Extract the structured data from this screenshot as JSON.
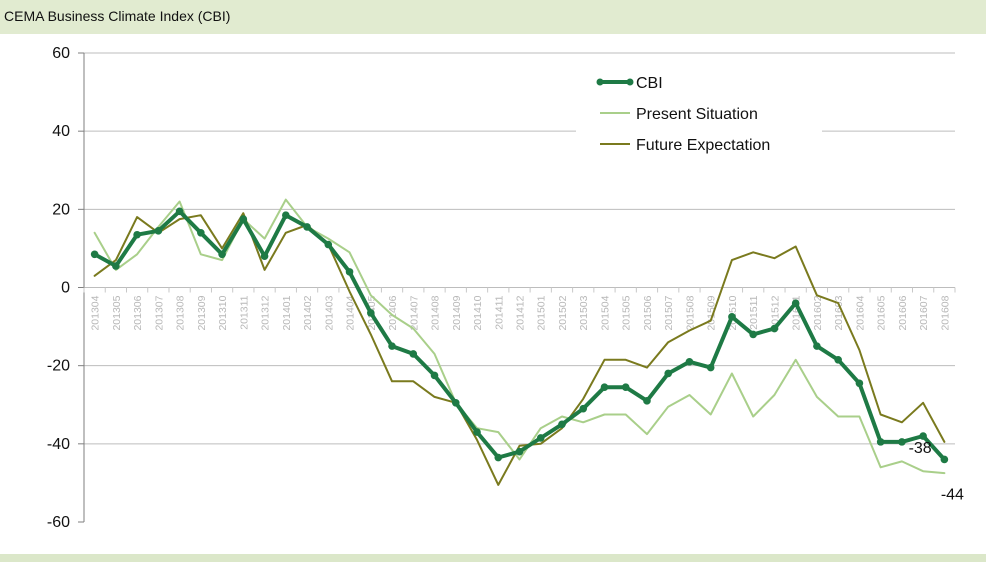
{
  "chart_data": {
    "type": "line",
    "title": "CEMA Business Climate Index (CBI)",
    "xlabel": "",
    "ylabel": "",
    "ylim": [
      -60,
      60
    ],
    "yticks": [
      -60,
      -40,
      -20,
      0,
      20,
      40,
      60
    ],
    "grid": true,
    "legend_position": "top-right",
    "categories": [
      "201304",
      "201305",
      "201306",
      "201307",
      "201308",
      "201309",
      "201310",
      "201311",
      "201312",
      "201401",
      "201402",
      "201403",
      "201404",
      "201405",
      "201406",
      "201407",
      "201408",
      "201409",
      "201410",
      "201411",
      "201412",
      "201501",
      "201502",
      "201503",
      "201504",
      "201505",
      "201506",
      "201507",
      "201508",
      "201509",
      "201510",
      "201511",
      "201512",
      "201601",
      "201602",
      "201603",
      "201604",
      "201605",
      "201606",
      "201607",
      "201608"
    ],
    "series": [
      {
        "name": "CBI",
        "color": "#1e7a45",
        "values": [
          8.5,
          5.5,
          13.5,
          14.5,
          19.5,
          14,
          8.5,
          17.5,
          8,
          18.5,
          15.5,
          11,
          4,
          -6.5,
          -15,
          -17,
          -22.5,
          -29.5,
          -37,
          -43.5,
          -42,
          -38.5,
          -35,
          -31,
          -25.5,
          -25.5,
          -29,
          -22,
          -19,
          -20.5,
          -7.5,
          -12,
          -10.5,
          -4,
          -15,
          -18.5,
          -24.5,
          -39.5,
          -39.5,
          -38,
          -44
        ]
      },
      {
        "name": "Present Situation",
        "color": "#a9cf8a",
        "values": [
          14,
          4.5,
          8.5,
          15.5,
          22,
          8.5,
          7,
          17.5,
          12.5,
          22.5,
          15.5,
          12.5,
          9,
          -2,
          -7,
          -10.5,
          -17,
          -29.5,
          -36,
          -37,
          -44,
          -36,
          -33,
          -34.5,
          -32.5,
          -32.5,
          -37.5,
          -30.5,
          -27.5,
          -32.5,
          -22,
          -33,
          -27.5,
          -18.5,
          -28,
          -33,
          -33,
          -46,
          -44.5,
          -47,
          -47.5
        ]
      },
      {
        "name": "Future Expectation",
        "color": "#7a7a1e",
        "values": [
          3,
          7,
          18,
          14,
          17.5,
          18.5,
          10,
          19,
          4.5,
          14,
          16,
          11,
          -1,
          -12,
          -24,
          -24,
          -28,
          -29.5,
          -39,
          -50.5,
          -40.5,
          -40,
          -36,
          -28.5,
          -18.5,
          -18.5,
          -20.5,
          -14,
          -11,
          -8.5,
          7,
          9,
          7.5,
          10.5,
          -2,
          -4,
          -16,
          -32.5,
          -34.5,
          -29.5,
          -39.5
        ]
      }
    ],
    "annotations": [
      {
        "category": "201607",
        "series": "CBI",
        "text": "-38"
      },
      {
        "category": "201608",
        "series": "CBI",
        "text": "-44"
      }
    ]
  }
}
